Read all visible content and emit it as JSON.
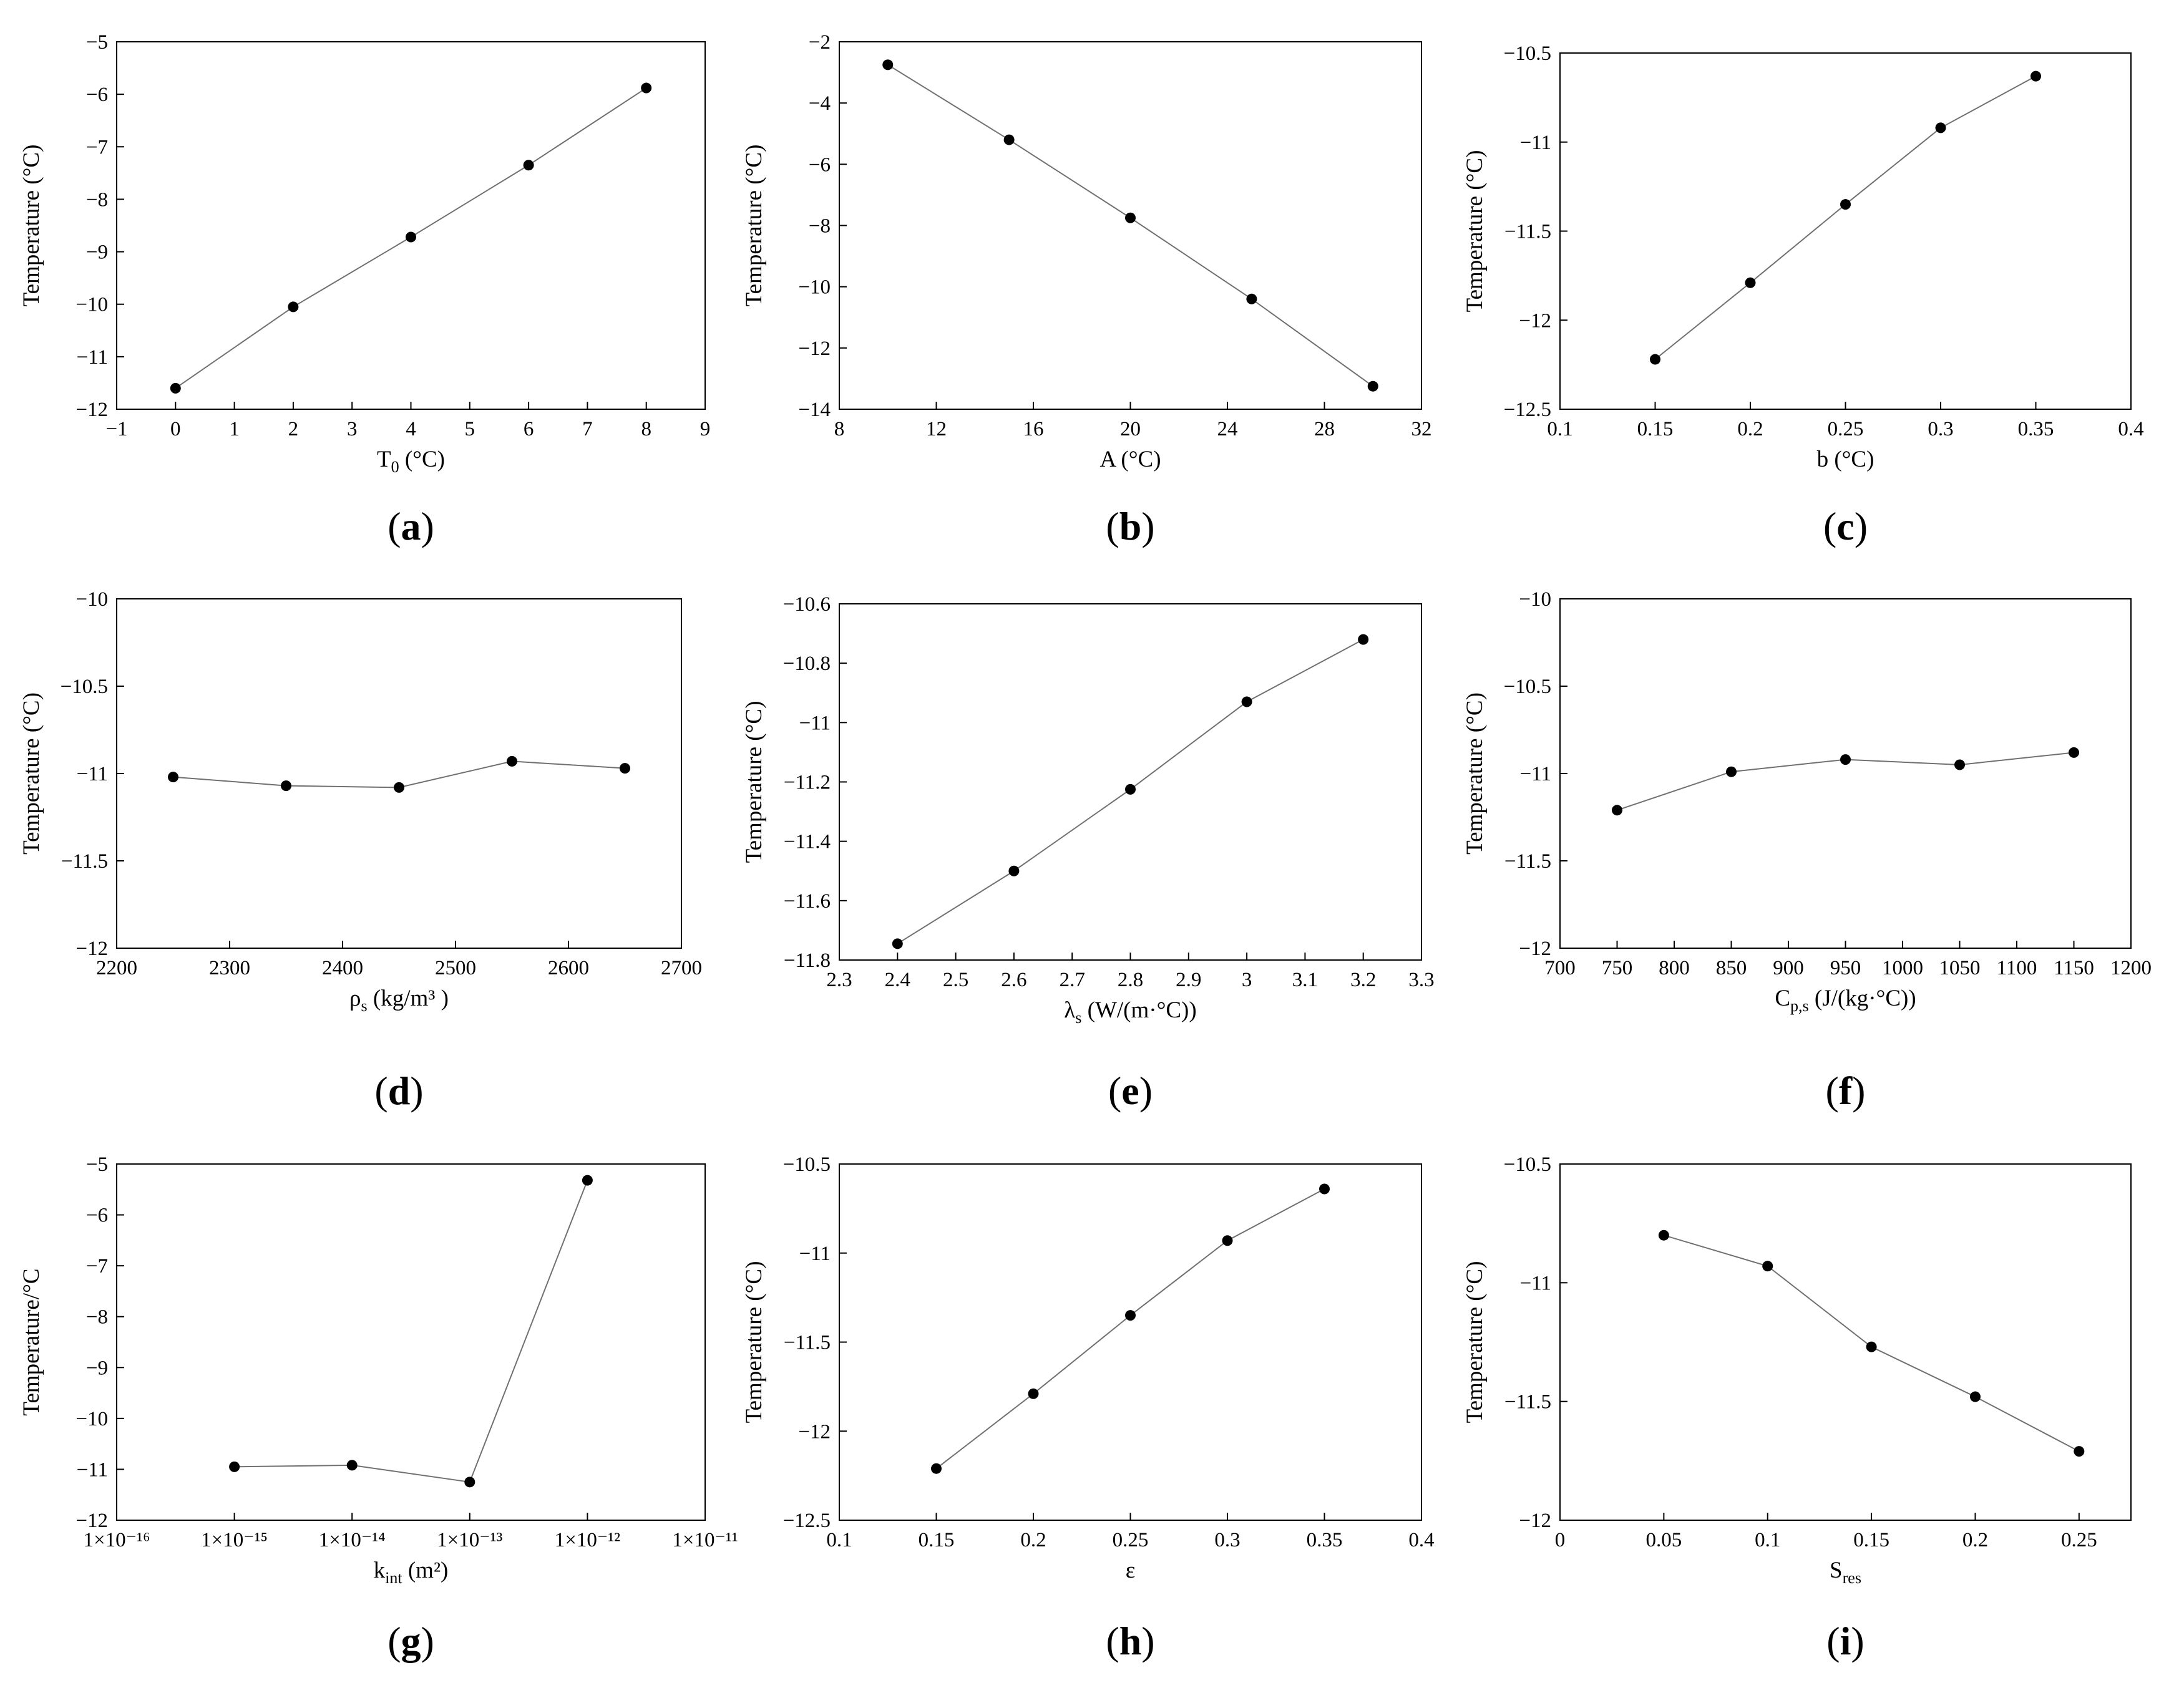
{
  "figure_panel_labels": [
    "a",
    "b",
    "c",
    "d",
    "e",
    "f",
    "g",
    "h",
    "i"
  ],
  "chart_data": [
    {
      "panel": "a",
      "type": "line",
      "x": [
        0,
        2,
        4,
        6,
        8
      ],
      "y": [
        -11.6,
        -10.05,
        -8.72,
        -7.35,
        -5.88
      ],
      "xlabel": "T",
      "xlabel_sub": "0",
      "xlabel_post": " (°C)",
      "ylabel": "Temperature (°C)",
      "xlim": [
        -1,
        9
      ],
      "ylim": [
        -12,
        -5
      ],
      "xticks": [
        -1,
        0,
        1,
        2,
        3,
        4,
        5,
        6,
        7,
        8,
        9
      ],
      "xtick_labels": [
        "−1",
        "0",
        "1",
        "2",
        "3",
        "4",
        "5",
        "6",
        "7",
        "8",
        "9"
      ],
      "yticks": [
        -12,
        -11,
        -10,
        -9,
        -8,
        -7,
        -6,
        -5
      ],
      "ytick_labels": [
        "−12",
        "−11",
        "−10",
        "−9",
        "−8",
        "−7",
        "−6",
        "−5"
      ],
      "grid": false,
      "legend": "none"
    },
    {
      "panel": "b",
      "type": "line",
      "x": [
        10,
        15,
        20,
        25,
        30
      ],
      "y": [
        -2.75,
        -5.2,
        -7.75,
        -10.4,
        -13.25
      ],
      "xlabel": "A (°C)",
      "ylabel": "Temperature (°C)",
      "xlim": [
        8,
        32
      ],
      "ylim": [
        -14,
        -2
      ],
      "xticks": [
        8,
        12,
        16,
        20,
        24,
        28,
        32
      ],
      "xtick_labels": [
        "8",
        "12",
        "16",
        "20",
        "24",
        "28",
        "32"
      ],
      "yticks": [
        -14,
        -12,
        -10,
        -8,
        -6,
        -4,
        -2
      ],
      "ytick_labels": [
        "−14",
        "−12",
        "−10",
        "−8",
        "−6",
        "−4",
        "−2"
      ],
      "grid": false,
      "legend": "none"
    },
    {
      "panel": "c",
      "type": "line",
      "x": [
        0.15,
        0.2,
        0.25,
        0.3,
        0.35
      ],
      "y": [
        -12.22,
        -11.79,
        -11.35,
        -10.92,
        -10.63
      ],
      "xlabel": "b (°C)",
      "ylabel": "Temperature (°C)",
      "xlim": [
        0.1,
        0.4
      ],
      "ylim": [
        -12.5,
        -10.5
      ],
      "xticks": [
        0.1,
        0.15,
        0.2,
        0.25,
        0.3,
        0.35,
        0.4
      ],
      "xtick_labels": [
        "0.1",
        "0.15",
        "0.2",
        "0.25",
        "0.3",
        "0.35",
        "0.4"
      ],
      "yticks": [
        -12.5,
        -12,
        -11.5,
        -11,
        -10.5
      ],
      "ytick_labels": [
        "−12.5",
        "−12",
        "−11.5",
        "−11",
        "−10.5"
      ],
      "grid": false,
      "legend": "none"
    },
    {
      "panel": "d",
      "type": "line",
      "x": [
        2250,
        2350,
        2450,
        2550,
        2650
      ],
      "y": [
        -11.02,
        -11.07,
        -11.08,
        -10.93,
        -10.97
      ],
      "xlabel": "ρ",
      "xlabel_sub": "s",
      "xlabel_post": " (kg/m³ )",
      "ylabel": "Temperature (°C)",
      "xlim": [
        2200,
        2700
      ],
      "ylim": [
        -12,
        -10
      ],
      "xticks": [
        2200,
        2300,
        2400,
        2500,
        2600,
        2700
      ],
      "xtick_labels": [
        "2200",
        "2300",
        "2400",
        "2500",
        "2600",
        "2700"
      ],
      "yticks": [
        -12,
        -11.5,
        -11,
        -10.5,
        -10
      ],
      "ytick_labels": [
        "−12",
        "−11.5",
        "−11",
        "−10.5",
        "−10"
      ],
      "grid": false,
      "legend": "none"
    },
    {
      "panel": "e",
      "type": "line",
      "x": [
        2.4,
        2.6,
        2.8,
        3.0,
        3.2
      ],
      "y": [
        -11.745,
        -11.5,
        -11.225,
        -10.93,
        -10.72
      ],
      "xlabel": "λ",
      "xlabel_sub": "s",
      "xlabel_post": " (W/(m·°C))",
      "ylabel": "Temperature (°C)",
      "xlim": [
        2.3,
        3.3
      ],
      "ylim": [
        -11.8,
        -10.6
      ],
      "xticks": [
        2.3,
        2.4,
        2.5,
        2.6,
        2.7,
        2.8,
        2.9,
        3.0,
        3.1,
        3.2,
        3.3
      ],
      "xtick_labels": [
        "2.3",
        "2.4",
        "2.5",
        "2.6",
        "2.7",
        "2.8",
        "2.9",
        "3",
        "3.1",
        "3.2",
        "3.3"
      ],
      "yticks": [
        -11.8,
        -11.6,
        -11.4,
        -11.2,
        -11.0,
        -10.8,
        -10.6
      ],
      "ytick_labels": [
        "−11.8",
        "−11.6",
        "−11.4",
        "−11.2",
        "−11",
        "−10.8",
        "−10.6"
      ],
      "grid": false,
      "legend": "none"
    },
    {
      "panel": "f",
      "type": "line",
      "x": [
        750,
        850,
        950,
        1050,
        1150
      ],
      "y": [
        -11.21,
        -10.99,
        -10.92,
        -10.95,
        -10.88
      ],
      "xlabel": "C",
      "xlabel_sub": "p,s",
      "xlabel_post": " (J/(kg·°C))",
      "ylabel": "Temperature (°C)",
      "xlim": [
        700,
        1200
      ],
      "ylim": [
        -12,
        -10
      ],
      "xticks": [
        700,
        750,
        800,
        850,
        900,
        950,
        1000,
        1050,
        1100,
        1150,
        1200
      ],
      "xtick_labels": [
        "700",
        "750",
        "800",
        "850",
        "900",
        "950",
        "1000",
        "1050",
        "1100",
        "1150",
        "1200"
      ],
      "yticks": [
        -12,
        -11.5,
        -11,
        -10.5,
        -10
      ],
      "ytick_labels": [
        "−12",
        "−11.5",
        "−11",
        "−10.5",
        "−10"
      ],
      "grid": false,
      "legend": "none"
    },
    {
      "panel": "g",
      "type": "line",
      "xscale": "log",
      "x": [
        1e-15,
        1e-14,
        1e-13,
        1e-12
      ],
      "y": [
        -10.95,
        -10.92,
        -11.25,
        -5.32
      ],
      "xlabel": "k",
      "xlabel_sub": "int",
      "xlabel_post": " (m²)",
      "ylabel": "Temperature/°C",
      "xlim": [
        1e-16,
        1e-11
      ],
      "ylim": [
        -12,
        -5
      ],
      "xticks": [
        1e-16,
        1e-15,
        1e-14,
        1e-13,
        1e-12,
        1e-11
      ],
      "xtick_labels": [
        "1×10⁻¹⁶",
        "1×10⁻¹⁵",
        "1×10⁻¹⁴",
        "1×10⁻¹³",
        "1×10⁻¹²",
        "1×10⁻¹¹"
      ],
      "yticks": [
        -12,
        -11,
        -10,
        -9,
        -8,
        -7,
        -6,
        -5
      ],
      "ytick_labels": [
        "−12",
        "−11",
        "−10",
        "−9",
        "−8",
        "−7",
        "−6",
        "−5"
      ],
      "grid": false,
      "legend": "none"
    },
    {
      "panel": "h",
      "type": "line",
      "x": [
        0.15,
        0.2,
        0.25,
        0.3,
        0.35
      ],
      "y": [
        -12.21,
        -11.79,
        -11.35,
        -10.93,
        -10.64
      ],
      "xlabel": "ε",
      "ylabel": "Temperature (°C)",
      "xlim": [
        0.1,
        0.4
      ],
      "ylim": [
        -12.5,
        -10.5
      ],
      "xticks": [
        0.1,
        0.15,
        0.2,
        0.25,
        0.3,
        0.35,
        0.4
      ],
      "xtick_labels": [
        "0.1",
        "0.15",
        "0.2",
        "0.25",
        "0.3",
        "0.35",
        "0.4"
      ],
      "yticks": [
        -12.5,
        -12,
        -11.5,
        -11,
        -10.5
      ],
      "ytick_labels": [
        "−12.5",
        "−12",
        "−11.5",
        "−11",
        "−10.5"
      ],
      "grid": false,
      "legend": "none"
    },
    {
      "panel": "i",
      "type": "line",
      "x": [
        0.05,
        0.1,
        0.15,
        0.2,
        0.25
      ],
      "y": [
        -10.8,
        -10.93,
        -11.27,
        -11.48,
        -11.71
      ],
      "xlabel": "S",
      "xlabel_sub": "res",
      "ylabel": "Temperature (°C)",
      "xlim": [
        0,
        0.275
      ],
      "ylim": [
        -12,
        -10.5
      ],
      "xticks": [
        0,
        0.05,
        0.1,
        0.15,
        0.2,
        0.25
      ],
      "xtick_labels": [
        "0",
        "0.05",
        "0.1",
        "0.15",
        "0.2",
        "0.25"
      ],
      "yticks": [
        -12,
        -11.5,
        -11,
        -10.5
      ],
      "ytick_labels": [
        "−12",
        "−11.5",
        "−11",
        "−10.5"
      ],
      "grid": false,
      "legend": "none"
    }
  ]
}
